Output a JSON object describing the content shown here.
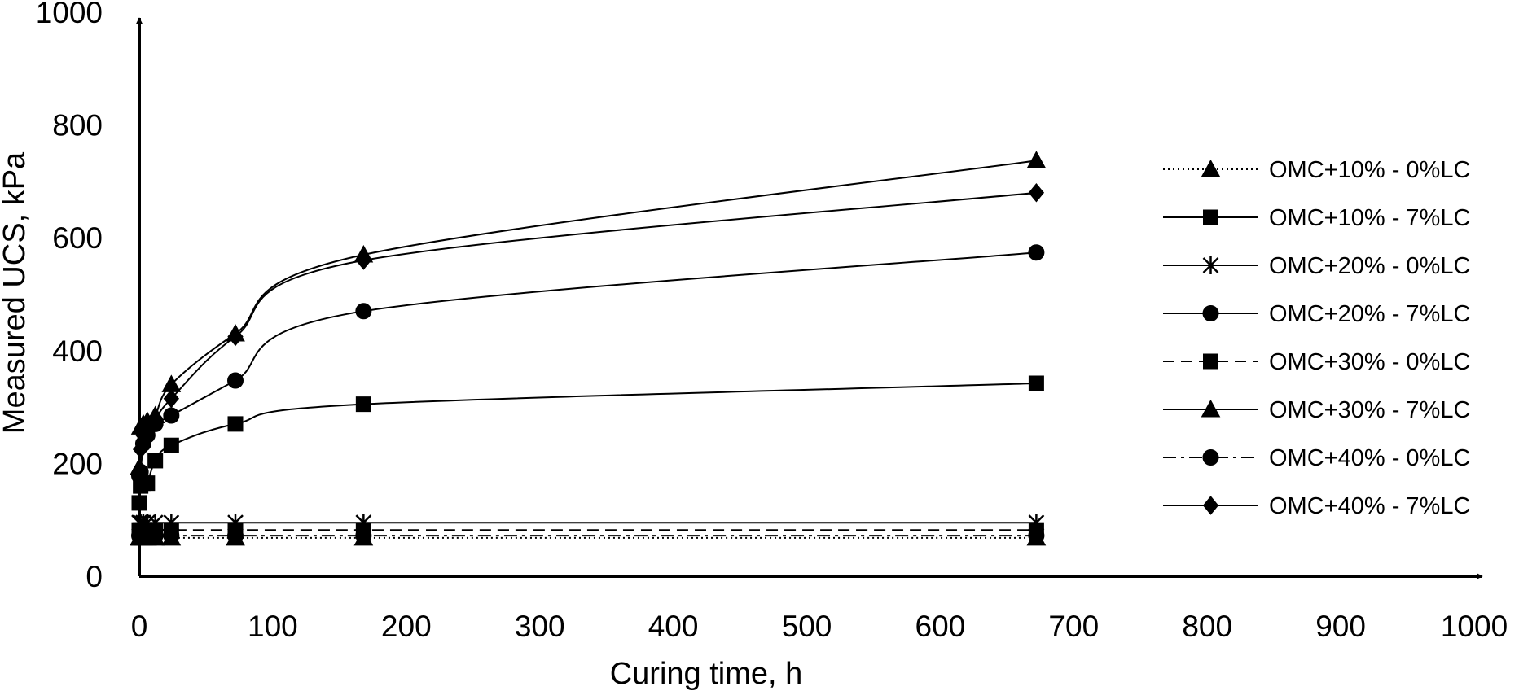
{
  "chart_data": {
    "type": "line",
    "xlabel": "Curing time, h",
    "ylabel": "Measured UCS, kPa",
    "xlim": [
      0,
      1000
    ],
    "ylim": [
      0,
      1000
    ],
    "x_ticks": [
      "0",
      "100",
      "200",
      "300",
      "400",
      "500",
      "600",
      "700",
      "800",
      "900",
      "1000"
    ],
    "y_ticks": [
      "0",
      "200",
      "400",
      "600",
      "800",
      "1000"
    ],
    "grid": false,
    "legend_position": "right",
    "series": [
      {
        "name": "OMC+10% - 0%LC",
        "marker": "triangle",
        "line": "dotted",
        "x": [
          0,
          1,
          3,
          6,
          12,
          24,
          72,
          168,
          672
        ],
        "y": [
          68,
          68,
          68,
          68,
          68,
          68,
          68,
          68,
          68
        ]
      },
      {
        "name": "OMC+10% - 7%LC",
        "marker": "square",
        "line": "solid",
        "x": [
          0,
          1,
          3,
          6,
          12,
          24,
          72,
          168,
          672
        ],
        "y": [
          130,
          160,
          165,
          165,
          205,
          232,
          270,
          305,
          342
        ]
      },
      {
        "name": "OMC+20% - 0%LC",
        "marker": "star",
        "line": "solid",
        "x": [
          0,
          1,
          3,
          6,
          12,
          24,
          72,
          168,
          672
        ],
        "y": [
          95,
          95,
          95,
          95,
          95,
          95,
          95,
          95,
          95
        ]
      },
      {
        "name": "OMC+20% - 7%LC",
        "marker": "circle",
        "line": "solid",
        "x": [
          0,
          1,
          3,
          6,
          12,
          24,
          72,
          168,
          672
        ],
        "y": [
          178,
          185,
          235,
          250,
          270,
          285,
          347,
          470,
          574
        ]
      },
      {
        "name": "OMC+30% - 0%LC",
        "marker": "square",
        "line": "dashed",
        "x": [
          0,
          1,
          3,
          6,
          12,
          24,
          72,
          168,
          672
        ],
        "y": [
          82,
          82,
          82,
          82,
          82,
          82,
          82,
          82,
          82
        ]
      },
      {
        "name": "OMC+30% - 7%LC",
        "marker": "triangle",
        "line": "solid",
        "x": [
          0,
          1,
          3,
          6,
          12,
          24,
          72,
          168,
          672
        ],
        "y": [
          193,
          265,
          270,
          275,
          285,
          340,
          430,
          570,
          737
        ]
      },
      {
        "name": "OMC+40% - 0%LC",
        "marker": "circle",
        "line": "dashdot",
        "x": [
          0,
          1,
          3,
          6,
          12,
          24,
          72,
          168,
          672
        ],
        "y": [
          72,
          72,
          72,
          72,
          72,
          72,
          72,
          72,
          72
        ]
      },
      {
        "name": "OMC+40% - 7%LC",
        "marker": "diamond",
        "line": "solid",
        "x": [
          0,
          1,
          3,
          6,
          12,
          24,
          72,
          168,
          672
        ],
        "y": [
          185,
          225,
          250,
          270,
          280,
          315,
          425,
          560,
          680
        ]
      }
    ]
  }
}
